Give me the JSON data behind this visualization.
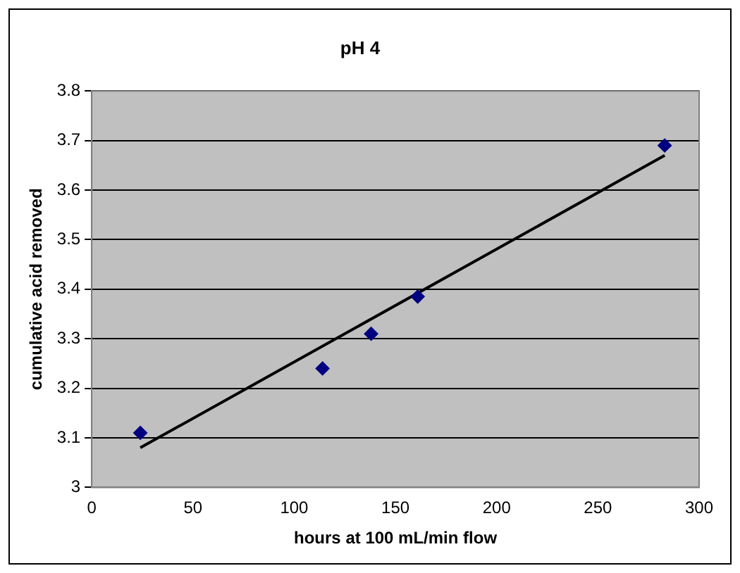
{
  "chart_data": {
    "type": "scatter",
    "title": "pH 4",
    "xlabel": "hours at 100 mL/min flow",
    "ylabel": "cumulative acid removed",
    "series": [
      {
        "color": "#000080",
        "x": [
          24,
          114,
          138,
          161,
          283
        ],
        "values": [
          3.11,
          3.24,
          3.31,
          3.385,
          3.69
        ],
        "marker": "diamond"
      },
      {
        "type": "line",
        "color": "#000000",
        "x": [
          24,
          283
        ],
        "values": [
          3.08,
          3.67
        ],
        "marker": "none"
      }
    ],
    "xlim": [
      0,
      300
    ],
    "xticks": [
      0,
      50,
      100,
      150,
      200,
      250,
      300
    ],
    "ylim": [
      3,
      3.8
    ],
    "yticks": [
      3,
      3.1,
      3.2,
      3.3,
      3.4,
      3.5,
      3.6,
      3.7,
      3.8
    ],
    "grid": "y",
    "legend": false
  }
}
